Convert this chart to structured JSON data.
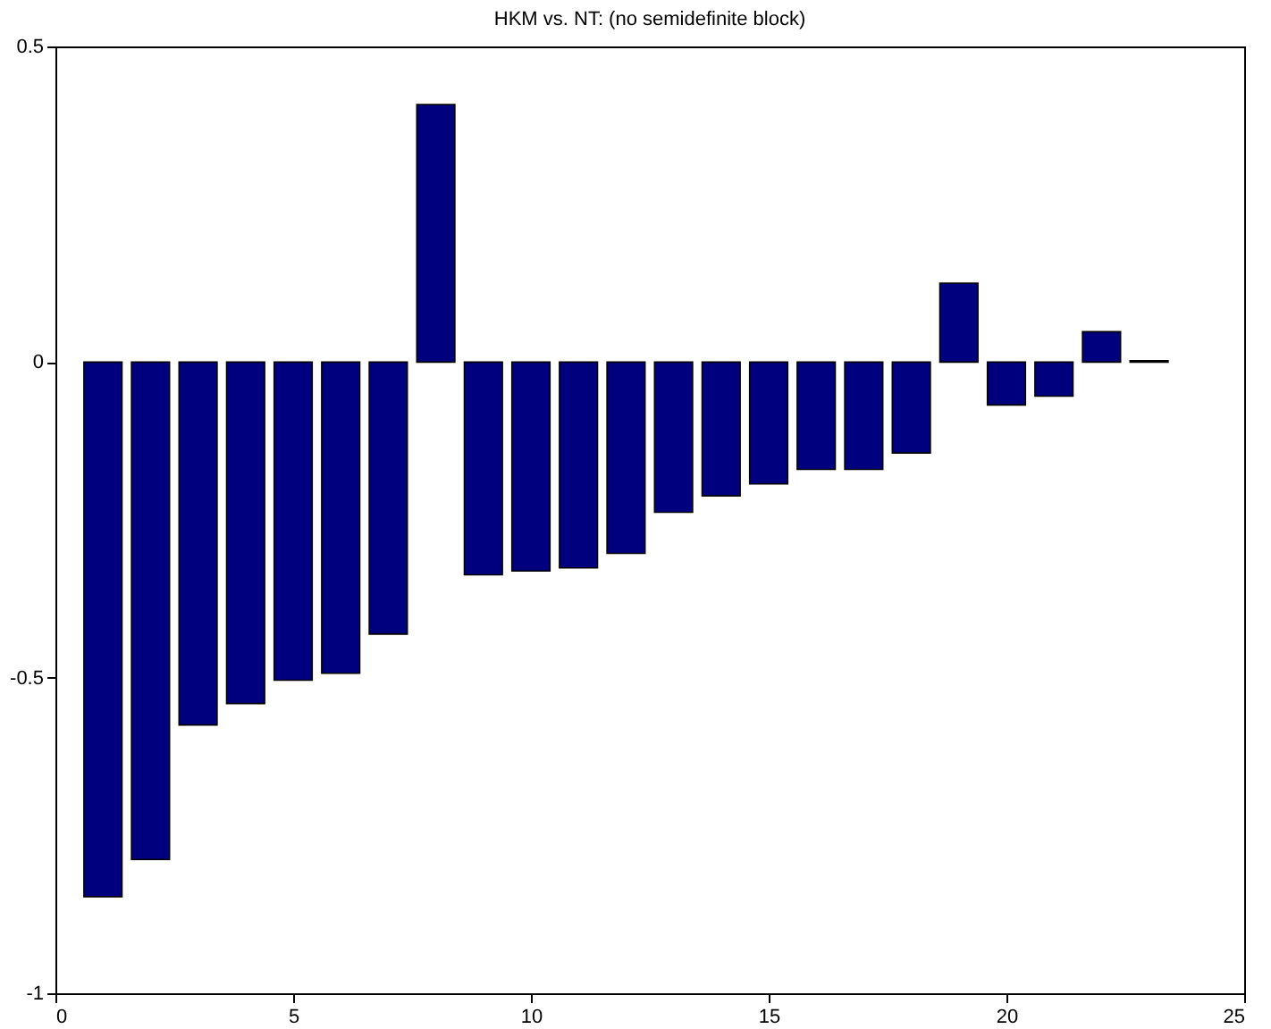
{
  "chart_data": {
    "type": "bar",
    "title": "HKM vs. NT: (no semidefinite block)",
    "x": [
      1,
      2,
      3,
      4,
      5,
      6,
      7,
      8,
      9,
      10,
      11,
      12,
      13,
      14,
      15,
      16,
      17,
      18,
      19,
      20,
      21,
      22,
      23
    ],
    "values": [
      -0.847,
      -0.788,
      -0.575,
      -0.541,
      -0.504,
      -0.493,
      -0.431,
      0.408,
      -0.337,
      -0.331,
      -0.326,
      -0.303,
      -0.238,
      -0.212,
      -0.193,
      -0.17,
      -0.17,
      -0.144,
      0.125,
      -0.068,
      -0.054,
      0.048,
      0.002
    ],
    "color": "#00007f",
    "xlim": [
      0,
      25
    ],
    "xticks": [
      0,
      5,
      10,
      15,
      20,
      25
    ],
    "ylim": [
      -1,
      0.5
    ],
    "yticks": [
      -1,
      -0.5,
      0,
      0.5
    ],
    "grid": false
  }
}
